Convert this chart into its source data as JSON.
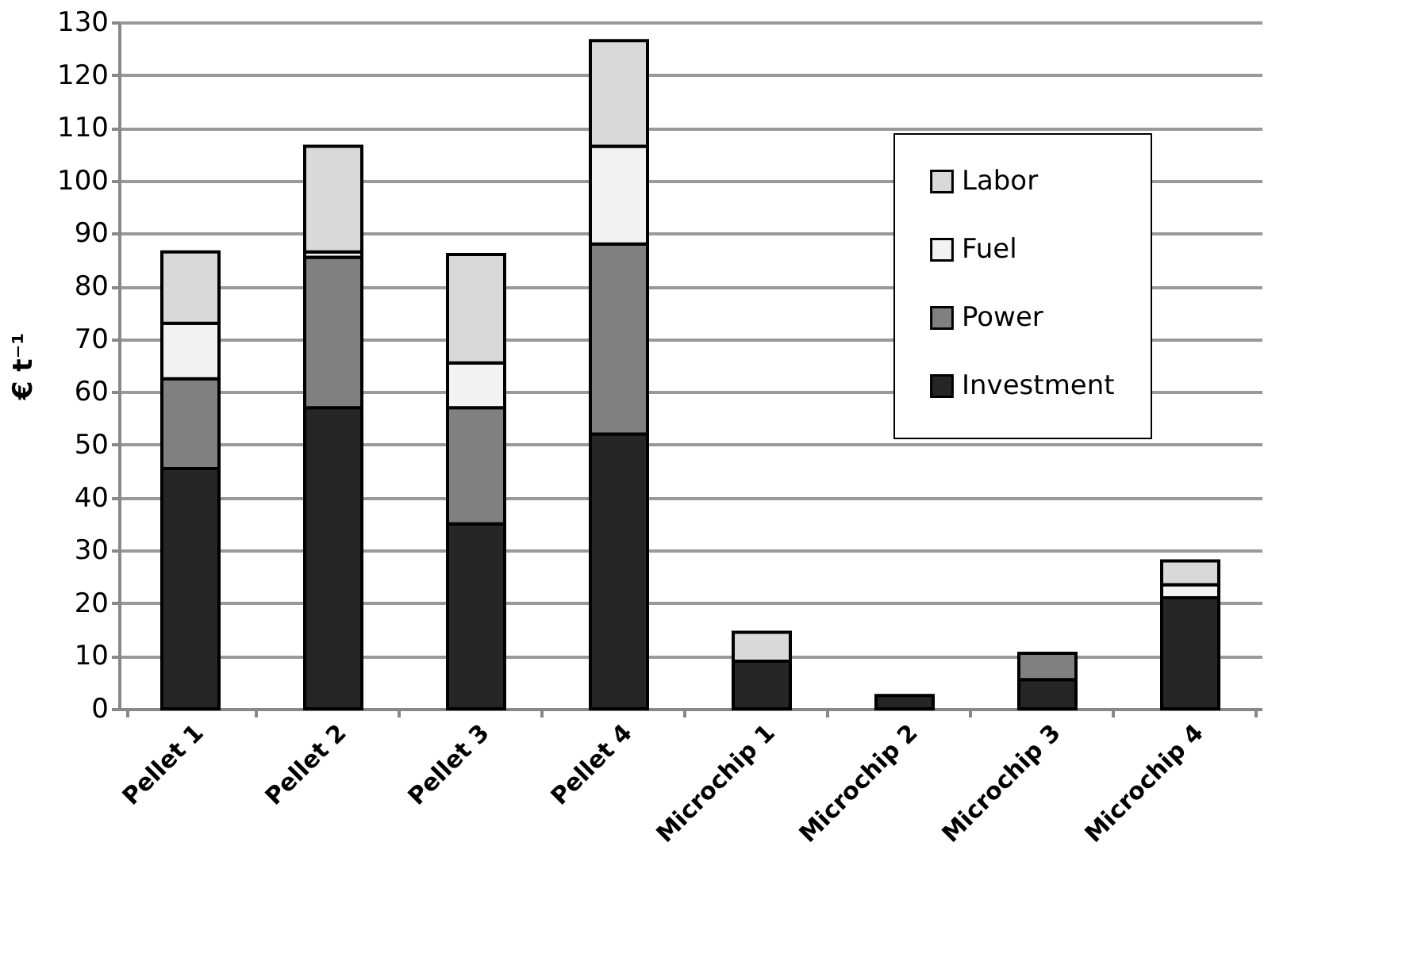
{
  "chart_data": {
    "type": "bar",
    "stacked": true,
    "ylabel": "€ t⁻¹",
    "categories": [
      "Pellet 1",
      "Pellet 2",
      "Pellet 3",
      "Pellet 4",
      "Microchip 1",
      "Microchip 2",
      "Microchip 3",
      "Microchip 4"
    ],
    "series": [
      {
        "name": "Investment",
        "color": "#262626",
        "values": [
          45.5,
          57,
          35,
          52,
          9,
          2.5,
          5.5,
          21
        ]
      },
      {
        "name": "Power",
        "color": "#808080",
        "values": [
          17,
          28.5,
          22,
          36,
          null,
          null,
          5,
          null
        ]
      },
      {
        "name": "Fuel",
        "color": "#f2f2f2",
        "values": [
          10.5,
          1,
          8.5,
          18.5,
          null,
          null,
          null,
          2.5
        ]
      },
      {
        "name": "Labor",
        "color": "#d9d9d9",
        "values": [
          13.5,
          20,
          20.5,
          20,
          5.5,
          null,
          null,
          4.5
        ]
      }
    ],
    "ylim": [
      0,
      130
    ],
    "yticks": [
      0,
      10,
      20,
      30,
      40,
      50,
      60,
      70,
      80,
      90,
      100,
      110,
      120,
      130
    ],
    "grid": "y",
    "legend": "top right"
  }
}
